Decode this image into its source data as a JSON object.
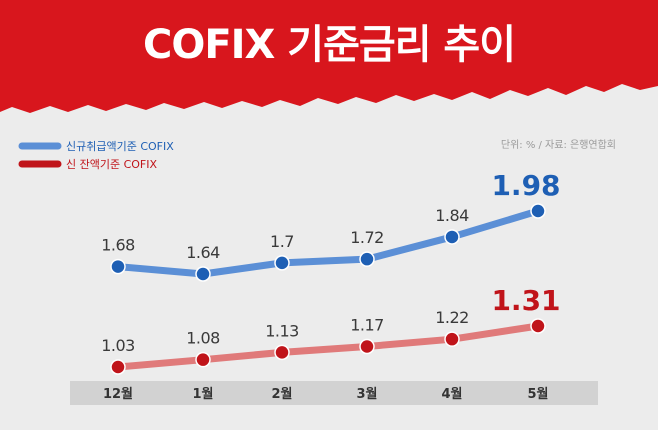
{
  "header": {
    "title": "COFIX 기준금리 추이"
  },
  "source_note": "단위: % / 자료: 은행연합회",
  "colors": {
    "banner": "#d8161d",
    "blue": "#5b8fd6",
    "blue_dark": "#1e5fb4",
    "red": "#c0141a",
    "red_light": "#e07a7a",
    "axis_bar": "#d2d2d2"
  },
  "chart_data": {
    "type": "line",
    "categories": [
      "12월",
      "1월",
      "2월",
      "3월",
      "4월",
      "5월"
    ],
    "series": [
      {
        "name": "신규취급액기준 COFIX",
        "values": [
          1.68,
          1.64,
          1.7,
          1.72,
          1.84,
          1.98
        ],
        "labels": [
          "1.68",
          "1.64",
          "1.7",
          "1.72",
          "1.84",
          "1.98"
        ]
      },
      {
        "name": "신 잔액기준 COFIX",
        "values": [
          1.03,
          1.08,
          1.13,
          1.17,
          1.22,
          1.31
        ],
        "labels": [
          "1.03",
          "1.08",
          "1.13",
          "1.17",
          "1.22",
          "1.31"
        ]
      }
    ],
    "legend_position": "top-left"
  }
}
